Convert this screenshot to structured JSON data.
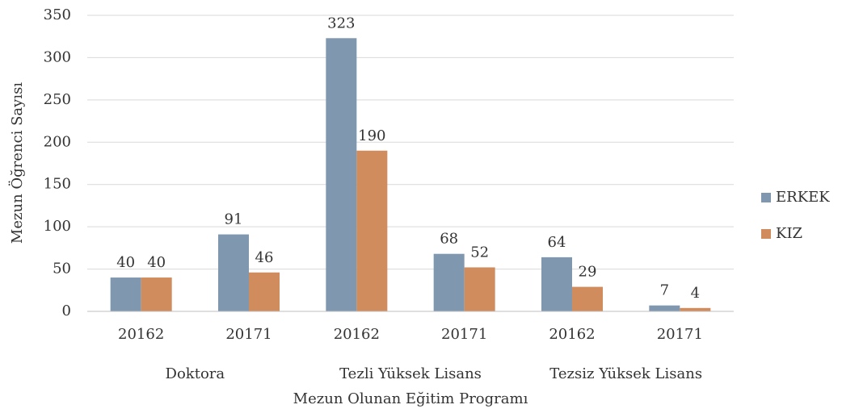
{
  "chart_data": {
    "type": "bar",
    "x_label": "Mezun Olunan Eğitim Programı",
    "y_label": "Mezun Öğrenci Sayısı",
    "groups": [
      {
        "name": "Doktora",
        "categories": [
          "20162",
          "20171"
        ]
      },
      {
        "name": "Tezli Yüksek Lisans",
        "categories": [
          "20162",
          "20171"
        ]
      },
      {
        "name": "Tezsiz Yüksek Lisans",
        "categories": [
          "20162",
          "20171"
        ]
      }
    ],
    "series": [
      {
        "name": "ERKEK",
        "color": "#8097b0",
        "values": [
          40,
          91,
          323,
          68,
          64,
          7
        ]
      },
      {
        "name": "KIZ",
        "color": "#d08c5c",
        "values": [
          40,
          46,
          190,
          52,
          29,
          4
        ]
      }
    ],
    "ylim": [
      0,
      350
    ],
    "yticks": [
      0,
      50,
      100,
      150,
      200,
      250,
      300,
      350
    ],
    "grid": true,
    "legend": "right"
  }
}
